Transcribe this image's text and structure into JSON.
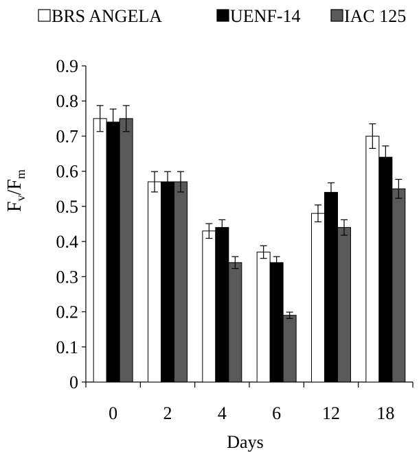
{
  "chart_data": {
    "type": "bar",
    "title": "",
    "xlabel": "Days",
    "ylabel": "Fv/Fm",
    "ylabel_main": "F",
    "ylabel_sub1": "v",
    "ylabel_slash": "/F",
    "ylabel_sub2": "m",
    "categories": [
      "0",
      "2",
      "4",
      "6",
      "12",
      "18"
    ],
    "ylim": [
      0,
      0.9
    ],
    "yticks": [
      0,
      0.1,
      0.2,
      0.3,
      0.4,
      0.5,
      0.6,
      0.7,
      0.8,
      0.9
    ],
    "ytick_labels": [
      "0",
      "0.1",
      "0.2",
      "0.3",
      "0.4",
      "0.5",
      "0.6",
      "0.7",
      "0.8",
      "0.9"
    ],
    "grid": false,
    "legend_position": "top",
    "series": [
      {
        "name": "BRS ANGELA",
        "color": "#ffffff",
        "values": [
          0.75,
          0.57,
          0.43,
          0.37,
          0.48,
          0.7
        ],
        "errors": [
          0.037,
          0.029,
          0.021,
          0.018,
          0.024,
          0.035
        ]
      },
      {
        "name": "UENF-14",
        "color": "#000000",
        "values": [
          0.74,
          0.57,
          0.44,
          0.34,
          0.54,
          0.64
        ],
        "errors": [
          0.037,
          0.029,
          0.022,
          0.017,
          0.027,
          0.032
        ]
      },
      {
        "name": "IAC 125",
        "color": "#595959",
        "values": [
          0.75,
          0.57,
          0.34,
          0.19,
          0.44,
          0.55
        ],
        "errors": [
          0.037,
          0.029,
          0.017,
          0.009,
          0.022,
          0.027
        ]
      }
    ]
  }
}
